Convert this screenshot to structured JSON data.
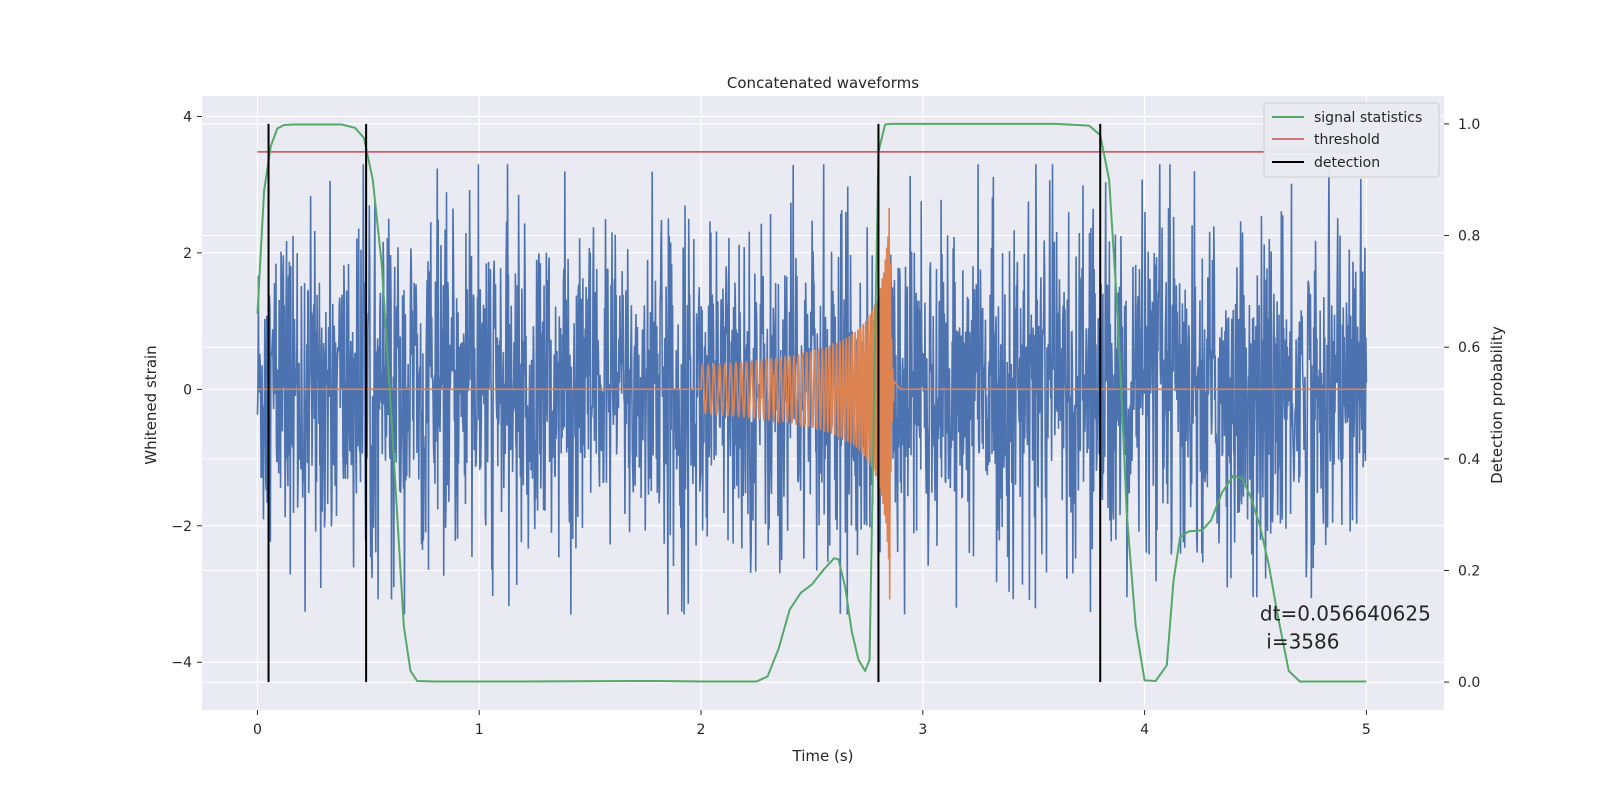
{
  "chart_data": {
    "type": "line",
    "title": "Concatenated waveforms",
    "xlabel": "Time (s)",
    "ylabel": "Whitened strain",
    "y2label": "Detection probability",
    "xlim": [
      -0.25,
      5.35
    ],
    "ylim": [
      -4.7,
      4.3
    ],
    "y2lim": [
      -0.05,
      1.05
    ],
    "x_ticks": [
      0,
      1,
      2,
      3,
      4,
      5
    ],
    "y_ticks": [
      -4,
      -2,
      0,
      2,
      4
    ],
    "y2_ticks": [
      0.0,
      0.2,
      0.4,
      0.6,
      0.8,
      1.0
    ],
    "y_tick_labels": [
      "−4",
      "−2",
      "0",
      "2",
      "4"
    ],
    "y2_tick_labels": [
      "0.0",
      "0.2",
      "0.4",
      "0.6",
      "0.8",
      "1.0"
    ],
    "grid": true,
    "legend_position": "top-right",
    "series": [
      {
        "name": "",
        "kind": "noise",
        "color": "#4c72b0",
        "axis": "left",
        "x_range": [
          0,
          5
        ],
        "amplitude_typical": 1.2,
        "amplitude_peak": 3.3
      },
      {
        "name": "",
        "kind": "chirp",
        "color": "#dd8452",
        "axis": "left",
        "segments": [
          {
            "x": [
              0,
              2.0
            ],
            "y": 0
          },
          {
            "x": [
              2.0,
              2.87
            ],
            "chirp_amplitude_start": 0.35,
            "chirp_amplitude_peak": 3.5,
            "peak_time": 2.85
          },
          {
            "x": [
              2.9,
              5.0
            ],
            "y": 0
          }
        ]
      },
      {
        "name": "signal statistics",
        "kind": "line",
        "color": "#55a868",
        "axis": "right",
        "x": [
          0.0,
          0.03,
          0.06,
          0.09,
          0.12,
          0.16,
          0.2,
          0.3,
          0.38,
          0.44,
          0.48,
          0.52,
          0.56,
          0.6,
          0.63,
          0.66,
          0.69,
          0.72,
          0.8,
          1.2,
          1.8,
          2.0,
          2.25,
          2.3,
          2.35,
          2.4,
          2.45,
          2.5,
          2.55,
          2.6,
          2.62,
          2.65,
          2.68,
          2.71,
          2.74,
          2.76,
          2.78,
          2.8,
          2.83,
          2.86,
          2.9,
          3.2,
          3.6,
          3.75,
          3.8,
          3.84,
          3.88,
          3.92,
          3.96,
          4.0,
          4.05,
          4.1,
          4.13,
          4.16,
          4.2,
          4.26,
          4.3,
          4.35,
          4.4,
          4.44,
          4.48,
          4.52,
          4.56,
          4.6,
          4.65,
          4.7,
          5.0
        ],
        "y": [
          0.66,
          0.88,
          0.96,
          0.992,
          0.998,
          0.999,
          0.999,
          0.999,
          0.999,
          0.993,
          0.975,
          0.9,
          0.75,
          0.5,
          0.3,
          0.1,
          0.02,
          0.002,
          0.001,
          0.001,
          0.002,
          0.001,
          0.001,
          0.01,
          0.06,
          0.13,
          0.16,
          0.175,
          0.2,
          0.222,
          0.22,
          0.17,
          0.09,
          0.04,
          0.02,
          0.04,
          0.5,
          0.95,
          0.999,
          1.0,
          1.0,
          1.0,
          1.0,
          0.997,
          0.98,
          0.9,
          0.65,
          0.3,
          0.1,
          0.003,
          0.002,
          0.03,
          0.18,
          0.26,
          0.27,
          0.272,
          0.29,
          0.34,
          0.37,
          0.365,
          0.33,
          0.28,
          0.21,
          0.12,
          0.02,
          0.001,
          0.001
        ]
      },
      {
        "name": "threshold",
        "kind": "hline",
        "color": "#c44e52",
        "axis": "right",
        "x": [
          0,
          5
        ],
        "y": 0.95
      },
      {
        "name": "detection",
        "kind": "vlines",
        "color": "#000000",
        "axis": "right",
        "x": [
          0.05,
          0.49,
          2.8,
          3.8
        ],
        "ymin": 0.0,
        "ymax": 1.0
      }
    ],
    "annotations": [
      {
        "text": "dt=0.056640625",
        "x": 4.52,
        "y2": 0.11
      },
      {
        "text": " i=3586",
        "x": 4.52,
        "y2": 0.06
      }
    ]
  }
}
